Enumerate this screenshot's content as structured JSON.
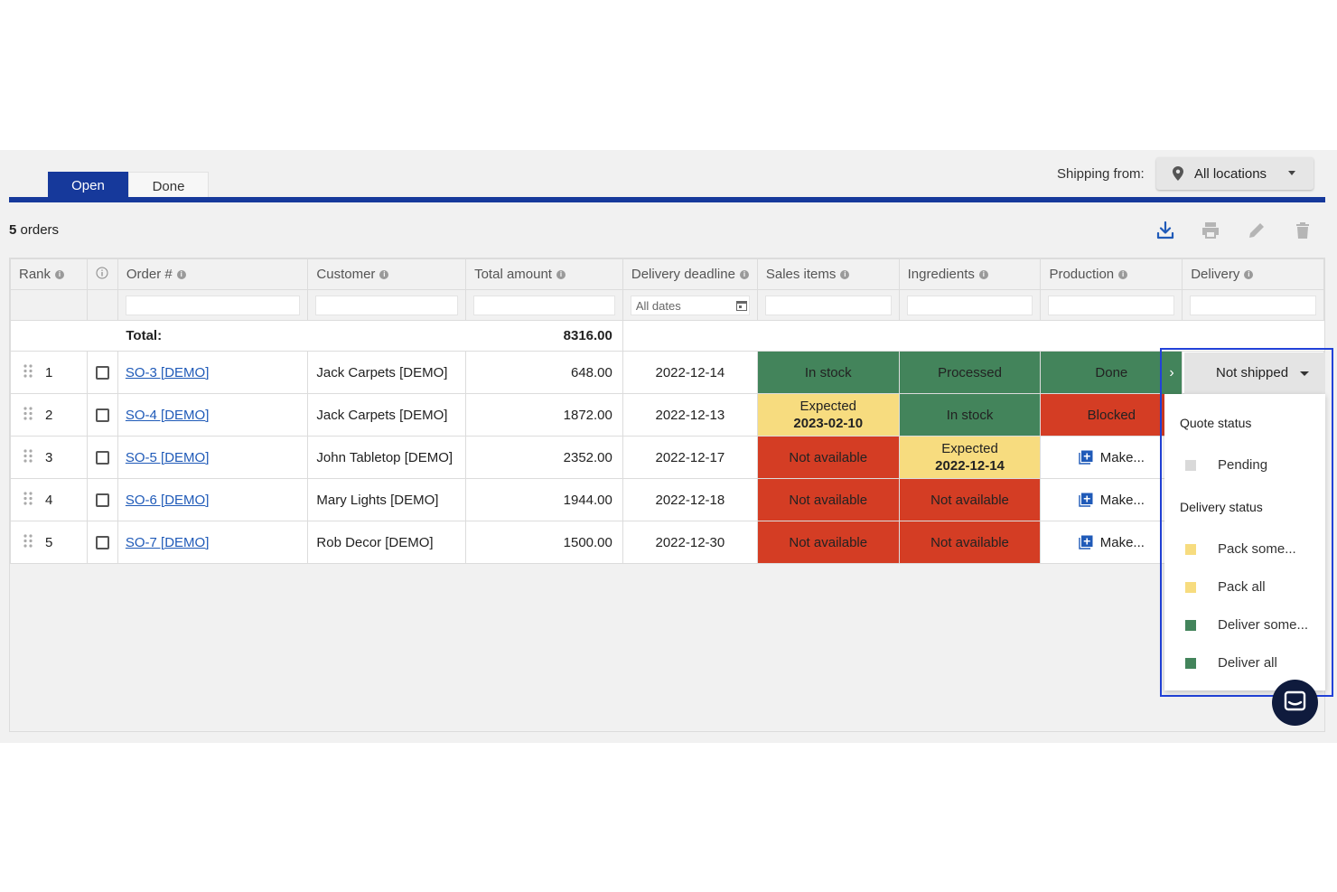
{
  "tabs": [
    {
      "label": "Open",
      "active": true
    },
    {
      "label": "Done",
      "active": false
    }
  ],
  "shipping": {
    "label": "Shipping from:",
    "location": "All locations"
  },
  "orders": {
    "count": "5",
    "suffix": "orders"
  },
  "toolbar": {
    "icons": [
      "download-icon",
      "print-icon",
      "edit-icon",
      "trash-icon"
    ]
  },
  "columns": [
    "Rank",
    "",
    "Order #",
    "Customer",
    "Total amount",
    "Delivery deadline",
    "Sales items",
    "Ingredients",
    "Production",
    "Delivery"
  ],
  "filters": {
    "date_placeholder": "All dates"
  },
  "total": {
    "label": "Total:",
    "value": "8316.00"
  },
  "rows": [
    {
      "rank": "1",
      "order": "SO-3 [DEMO]",
      "customer": "Jack Carpets [DEMO]",
      "amount": "648.00",
      "deadline": "2022-12-14",
      "sales": {
        "label": "In stock",
        "date": "",
        "color": "green"
      },
      "ingredients": {
        "label": "Processed",
        "date": "",
        "color": "green"
      },
      "production": {
        "label": "Done",
        "date": "",
        "color": "green"
      }
    },
    {
      "rank": "2",
      "order": "SO-4 [DEMO]",
      "customer": "Jack Carpets [DEMO]",
      "amount": "1872.00",
      "deadline": "2022-12-13",
      "sales": {
        "label": "Expected",
        "date": "2023-02-10",
        "color": "yellow"
      },
      "ingredients": {
        "label": "In stock",
        "date": "",
        "color": "green"
      },
      "production": {
        "label": "Blocked",
        "date": "",
        "color": "red"
      }
    },
    {
      "rank": "3",
      "order": "SO-5 [DEMO]",
      "customer": "John Tabletop [DEMO]",
      "amount": "2352.00",
      "deadline": "2022-12-17",
      "sales": {
        "label": "Not available",
        "date": "",
        "color": "red"
      },
      "ingredients": {
        "label": "Expected",
        "date": "2022-12-14",
        "color": "yellow"
      },
      "production": {
        "label": "Make...",
        "date": "",
        "color": "make"
      }
    },
    {
      "rank": "4",
      "order": "SO-6 [DEMO]",
      "customer": "Mary Lights [DEMO]",
      "amount": "1944.00",
      "deadline": "2022-12-18",
      "sales": {
        "label": "Not available",
        "date": "",
        "color": "red"
      },
      "ingredients": {
        "label": "Not available",
        "date": "",
        "color": "red"
      },
      "production": {
        "label": "Make...",
        "date": "",
        "color": "make"
      }
    },
    {
      "rank": "5",
      "order": "SO-7 [DEMO]",
      "customer": "Rob Decor [DEMO]",
      "amount": "1500.00",
      "deadline": "2022-12-30",
      "sales": {
        "label": "Not available",
        "date": "",
        "color": "red"
      },
      "ingredients": {
        "label": "Not available",
        "date": "",
        "color": "red"
      },
      "production": {
        "label": "Make...",
        "date": "",
        "color": "make"
      }
    }
  ],
  "delivery_select": {
    "value": "Not shipped"
  },
  "dropdown": {
    "quote_heading": "Quote status",
    "quote_items": [
      {
        "label": "Pending",
        "color": "#d9d9d9"
      }
    ],
    "delivery_heading": "Delivery status",
    "delivery_items": [
      {
        "label": "Pack some...",
        "color": "#f7dc7f"
      },
      {
        "label": "Pack all",
        "color": "#f7dc7f"
      },
      {
        "label": "Deliver some...",
        "color": "#43845b"
      },
      {
        "label": "Deliver all",
        "color": "#43845b"
      }
    ]
  },
  "colors": {
    "primary": "#16399b",
    "green": "#43845b",
    "red": "#d43d24",
    "yellow": "#f7dc7f",
    "link": "#1f5ab8",
    "deadline": "#c0291a"
  }
}
